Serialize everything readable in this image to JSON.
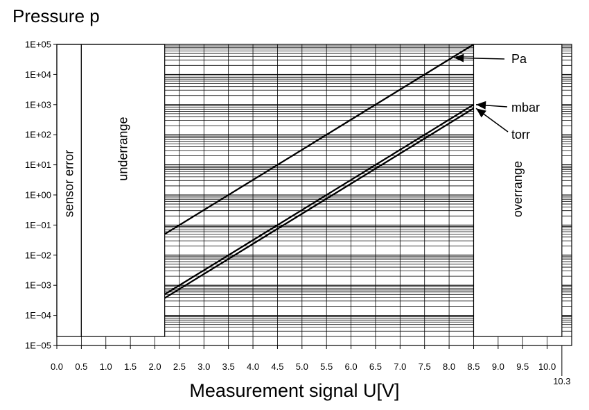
{
  "chart_data": {
    "type": "line",
    "title": "Pressure p",
    "xlabel": "Measurement signal U[V]",
    "ylabel": "",
    "xlim": [
      0,
      10.5
    ],
    "ylim": [
      1e-05,
      100000
    ],
    "y_scale": "log",
    "grid": "log minor horizontal grid lines in valid range",
    "x_ticks": [
      "0.0",
      "0.5",
      "1.0",
      "1.5",
      "2.0",
      "2.5",
      "3.0",
      "3.5",
      "4.0",
      "4.5",
      "5.0",
      "5.5",
      "6.0",
      "6.5",
      "7.0",
      "7.5",
      "8.0",
      "8.5",
      "9.0",
      "9.5",
      "10.0"
    ],
    "x_tick_values": [
      0,
      0.5,
      1,
      1.5,
      2,
      2.5,
      3,
      3.5,
      4,
      4.5,
      5,
      5.5,
      6,
      6.5,
      7,
      7.5,
      8,
      8.5,
      9,
      9.5,
      10
    ],
    "x_extra_tick": {
      "label": "10.3",
      "value": 10.3
    },
    "y_ticks": [
      "1E−05",
      "1E−04",
      "1E−03",
      "1E−02",
      "1E−01",
      "1E+00",
      "1E+01",
      "1E+02",
      "1E+03",
      "1E+04",
      "1E+05"
    ],
    "y_tick_values": [
      1e-05,
      0.0001,
      0.001,
      0.01,
      0.1,
      1,
      10,
      100,
      1000,
      10000,
      100000
    ],
    "regions": [
      {
        "label": "sensor error",
        "x": [
          0,
          0.5
        ]
      },
      {
        "label": "underrange",
        "x": [
          0.5,
          2.2
        ]
      },
      {
        "label": "overrange",
        "x": [
          8.5,
          10.3
        ]
      }
    ],
    "series": [
      {
        "name": "Pa",
        "x": [
          2.2,
          8.5
        ],
        "y": [
          0.05,
          100000
        ]
      },
      {
        "name": "mbar",
        "x": [
          2.2,
          8.5
        ],
        "y": [
          0.0005,
          1000
        ]
      },
      {
        "name": "torr",
        "x": [
          2.2,
          8.5
        ],
        "y": [
          0.000375,
          750
        ]
      }
    ],
    "annotations": [
      {
        "text": "Pa",
        "arrow_to": [
          8.1,
          36000
        ]
      },
      {
        "text": "mbar",
        "arrow_to": [
          8.55,
          1000
        ]
      },
      {
        "text": "torr",
        "arrow_to": [
          8.55,
          750
        ]
      }
    ]
  }
}
